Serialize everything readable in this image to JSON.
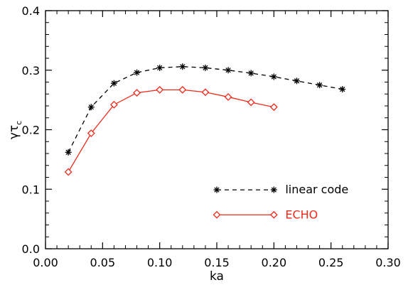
{
  "chart_data": {
    "type": "line",
    "xlabel": "ka",
    "ylabel": "γτ",
    "ylabel_subscript": "c",
    "xlim": [
      0.0,
      0.3
    ],
    "ylim": [
      0.0,
      0.4
    ],
    "xticks": [
      "0.00",
      "0.05",
      "0.10",
      "0.15",
      "0.20",
      "0.25",
      "0.30"
    ],
    "yticks": [
      "0.0",
      "0.1",
      "0.2",
      "0.3",
      "0.4"
    ],
    "grid": false,
    "legend_position": "bottom-right",
    "series": [
      {
        "name": "linear code",
        "color": "#000000",
        "line_style": "dashed",
        "marker": "asterisk",
        "x": [
          0.02,
          0.04,
          0.06,
          0.08,
          0.1,
          0.12,
          0.14,
          0.16,
          0.18,
          0.2,
          0.22,
          0.24,
          0.26
        ],
        "y": [
          0.162,
          0.238,
          0.278,
          0.296,
          0.304,
          0.306,
          0.304,
          0.3,
          0.295,
          0.289,
          0.282,
          0.275,
          0.268
        ]
      },
      {
        "name": "ECHO",
        "color": "#ee2a1a",
        "line_style": "solid",
        "marker": "diamond",
        "x": [
          0.02,
          0.04,
          0.06,
          0.08,
          0.1,
          0.12,
          0.14,
          0.16,
          0.18,
          0.2
        ],
        "y": [
          0.129,
          0.194,
          0.242,
          0.262,
          0.267,
          0.267,
          0.263,
          0.255,
          0.246,
          0.238
        ]
      }
    ]
  }
}
